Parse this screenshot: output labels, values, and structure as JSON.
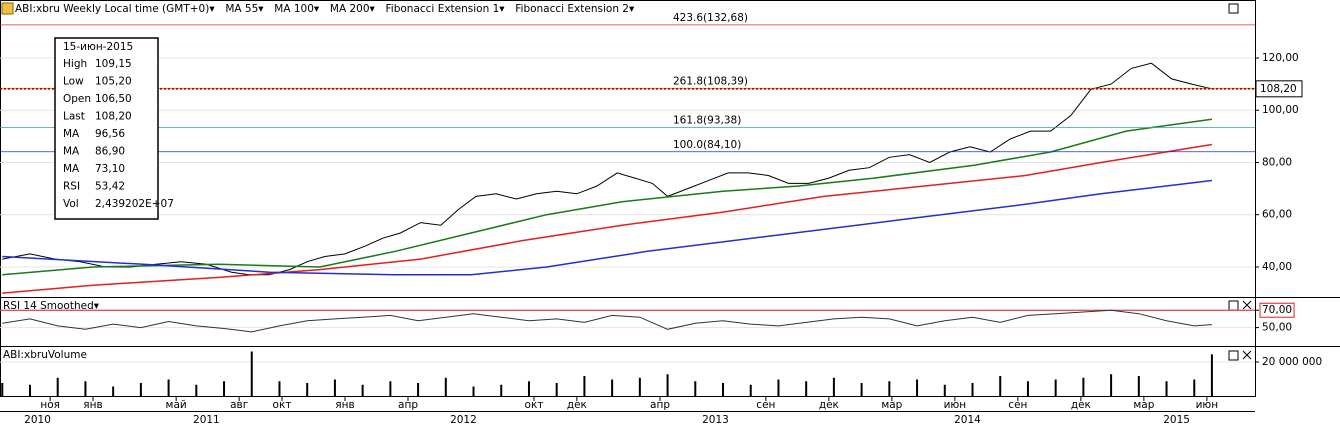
{
  "chart_data": [
    {
      "type": "line",
      "title": "ABI:xbru Weekly Local time (GMT+0)▾",
      "xlim": [
        2010.631,
        2015.611
      ],
      "ylim": [
        28.5,
        142.2
      ],
      "yticks": [
        {
          "value": 40,
          "label": "40,00"
        },
        {
          "value": 60,
          "label": "60,00"
        },
        {
          "value": 80,
          "label": "80,00"
        },
        {
          "value": 100,
          "label": "100,00"
        },
        {
          "value": 120,
          "label": "120,00"
        }
      ],
      "series": [
        {
          "color": "#000000",
          "x": [
            2010.64,
            2010.75,
            2010.85,
            2010.95,
            2011.05,
            2011.15,
            2011.25,
            2011.35,
            2011.45,
            2011.55,
            2011.62,
            2011.7,
            2011.78,
            2011.85,
            2011.92,
            2012.0,
            2012.08,
            2012.15,
            2012.22,
            2012.3,
            2012.38,
            2012.45,
            2012.52,
            2012.6,
            2012.68,
            2012.76,
            2012.84,
            2012.92,
            2013.0,
            2013.08,
            2013.15,
            2013.22,
            2013.28,
            2013.36,
            2013.44,
            2013.52,
            2013.6,
            2013.68,
            2013.76,
            2013.84,
            2013.92,
            2014.0,
            2014.08,
            2014.16,
            2014.24,
            2014.32,
            2014.4,
            2014.48,
            2014.56,
            2014.64,
            2014.72,
            2014.8,
            2014.88,
            2014.96,
            2015.04,
            2015.12,
            2015.2,
            2015.28,
            2015.36,
            2015.44
          ],
          "values": [
            43,
            45,
            43,
            42,
            40,
            40,
            41,
            42,
            41,
            38,
            37,
            37,
            39,
            42,
            44,
            45,
            48,
            51,
            53,
            57,
            56,
            62,
            67,
            68,
            66,
            68,
            69,
            68,
            71,
            76,
            74,
            72,
            67,
            70,
            73,
            76,
            76,
            75,
            72,
            72,
            74,
            77,
            78,
            82,
            83,
            80,
            84,
            86,
            84,
            89,
            92,
            92,
            98,
            108,
            110,
            116,
            118,
            112,
            110,
            108.2
          ]
        },
        {
          "name": "MA 55▾",
          "color": "#1a7a1a",
          "x": [
            2010.64,
            2011.0,
            2011.5,
            2011.9,
            2012.2,
            2012.5,
            2012.8,
            2013.1,
            2013.5,
            2013.8,
            2014.1,
            2014.5,
            2014.8,
            2015.1,
            2015.44
          ],
          "values": [
            37,
            40,
            41,
            40,
            46,
            53,
            60,
            65,
            69,
            71,
            74,
            79,
            84,
            92,
            96.56
          ]
        },
        {
          "name": "MA 100▾",
          "color": "#e02020",
          "x": [
            2010.64,
            2011.0,
            2011.5,
            2011.9,
            2012.3,
            2012.7,
            2013.1,
            2013.5,
            2013.9,
            2014.3,
            2014.7,
            2015.0,
            2015.44
          ],
          "values": [
            30,
            33,
            36,
            39,
            43,
            50,
            56,
            61,
            67,
            71,
            75,
            80,
            86.9
          ]
        },
        {
          "name": "MA 200▾",
          "color": "#2030d0",
          "x": [
            2010.64,
            2011.2,
            2011.7,
            2012.2,
            2012.5,
            2012.8,
            2013.2,
            2013.7,
            2014.2,
            2014.7,
            2015.0,
            2015.44
          ],
          "values": [
            44,
            41,
            38,
            37,
            37,
            40,
            46,
            52,
            58,
            64,
            68,
            73.1
          ]
        }
      ],
      "fib_tools": [
        "Fibonacci Extension 1▾",
        "Fibonacci Extension 2▾"
      ],
      "levels": [
        {
          "value": 132.68,
          "label": "423.6(132,68)",
          "color": "#e03030"
        },
        {
          "value": 108.39,
          "label": "261.8(108,39)",
          "color": "#d07020"
        },
        {
          "value": 93.38,
          "label": "161.8(93,38)",
          "color": "#40a0a0"
        },
        {
          "value": 84.1,
          "label": "100.0(84,10)",
          "color": "#2030d0"
        }
      ],
      "last_value": {
        "value": 108.2,
        "label": "108,20"
      },
      "info": {
        "date": "15-июн-2015",
        "rows": [
          {
            "label": "High",
            "value": "109,15",
            "color": "#000000"
          },
          {
            "label": "Low",
            "value": "105,20",
            "color": "#000000"
          },
          {
            "label": "Open",
            "value": "106,50",
            "color": "#000000"
          },
          {
            "label": "Last",
            "value": "108,20",
            "color": "#000000"
          },
          {
            "label": "MA",
            "value": "96,56",
            "color": "#1a7a1a"
          },
          {
            "label": "MA",
            "value": "86,90",
            "color": "#e02020"
          },
          {
            "label": "MA",
            "value": "73,10",
            "color": "#2030d0"
          },
          {
            "label": "RSI",
            "value": "53,42",
            "color": "#000000"
          },
          {
            "label": "Vol",
            "value": "2,439202E+07",
            "color": "#000000"
          }
        ]
      }
    },
    {
      "type": "line",
      "title": "RSI 14 Smoothed▾",
      "xlim": [
        2010.631,
        2015.611
      ],
      "ylim": [
        28.8,
        84.1
      ],
      "yticks": [
        {
          "value": 50,
          "label": "50,00"
        },
        {
          "value": 70,
          "label": "70,00"
        }
      ],
      "series": [
        {
          "color": "#333333",
          "x": [
            2010.64,
            2010.75,
            2010.86,
            2010.97,
            2011.08,
            2011.19,
            2011.3,
            2011.41,
            2011.52,
            2011.63,
            2011.74,
            2011.85,
            2011.96,
            2012.07,
            2012.18,
            2012.29,
            2012.4,
            2012.51,
            2012.62,
            2012.73,
            2012.84,
            2012.95,
            2013.06,
            2013.17,
            2013.28,
            2013.39,
            2013.5,
            2013.61,
            2013.72,
            2013.83,
            2013.94,
            2014.05,
            2014.16,
            2014.27,
            2014.38,
            2014.49,
            2014.6,
            2014.71,
            2014.82,
            2014.93,
            2015.04,
            2015.15,
            2015.26,
            2015.37,
            2015.44
          ],
          "values": [
            55,
            60,
            52,
            48,
            54,
            50,
            57,
            52,
            49,
            45,
            52,
            58,
            60,
            62,
            64,
            58,
            62,
            66,
            62,
            58,
            60,
            56,
            64,
            62,
            48,
            55,
            58,
            54,
            52,
            56,
            60,
            62,
            60,
            52,
            58,
            62,
            56,
            64,
            66,
            68,
            70,
            66,
            58,
            52,
            53.42
          ]
        }
      ]
    },
    {
      "type": "bar",
      "title": "ABI:xbruVolume",
      "xlim": [
        2010.631,
        2015.611
      ],
      "ylim": [
        0,
        28570000
      ],
      "yticks": [
        {
          "value": 20000000,
          "label": "20 000 000"
        }
      ],
      "color": "#000000",
      "x": [
        2010.64,
        2010.75,
        2010.86,
        2010.97,
        2011.08,
        2011.19,
        2011.3,
        2011.41,
        2011.52,
        2011.63,
        2011.74,
        2011.85,
        2011.96,
        2012.07,
        2012.18,
        2012.29,
        2012.4,
        2012.51,
        2012.62,
        2012.73,
        2012.84,
        2012.95,
        2013.06,
        2013.17,
        2013.28,
        2013.39,
        2013.5,
        2013.61,
        2013.72,
        2013.83,
        2013.94,
        2014.05,
        2014.16,
        2014.27,
        2014.38,
        2014.49,
        2014.6,
        2014.71,
        2014.82,
        2014.93,
        2015.04,
        2015.15,
        2015.26,
        2015.37,
        2015.44
      ],
      "values": [
        8000000,
        7000000,
        11000000,
        9000000,
        6000000,
        8000000,
        10000000,
        7000000,
        9000000,
        26000000,
        9000000,
        8000000,
        10000000,
        7000000,
        9000000,
        8000000,
        11000000,
        6000000,
        7000000,
        9000000,
        8000000,
        12000000,
        10000000,
        11000000,
        13000000,
        9000000,
        8000000,
        7000000,
        10000000,
        9000000,
        11000000,
        8000000,
        9000000,
        10000000,
        7000000,
        8000000,
        12000000,
        9000000,
        10000000,
        11000000,
        13000000,
        12000000,
        9000000,
        10000000,
        24392020
      ],
      "xticks": [
        {
          "value": 2010.83,
          "label": "ноя"
        },
        {
          "value": 2011.0,
          "label": "янв"
        },
        {
          "value": 2011.33,
          "label": "май"
        },
        {
          "value": 2011.58,
          "label": "авг"
        },
        {
          "value": 2011.75,
          "label": "окт"
        },
        {
          "value": 2012.0,
          "label": "янв"
        },
        {
          "value": 2012.25,
          "label": "апр"
        },
        {
          "value": 2012.75,
          "label": "окт"
        },
        {
          "value": 2012.92,
          "label": "дек"
        },
        {
          "value": 2013.25,
          "label": "апр"
        },
        {
          "value": 2013.67,
          "label": "сен"
        },
        {
          "value": 2013.92,
          "label": "дек"
        },
        {
          "value": 2014.17,
          "label": "мар"
        },
        {
          "value": 2014.42,
          "label": "июн"
        },
        {
          "value": 2014.67,
          "label": "сен"
        },
        {
          "value": 2014.92,
          "label": "дек"
        },
        {
          "value": 2015.17,
          "label": "мар"
        },
        {
          "value": 2015.42,
          "label": "июн"
        }
      ],
      "year_ticks": [
        {
          "value": 2010.78,
          "label": "2010"
        },
        {
          "value": 2011.45,
          "label": "2011"
        },
        {
          "value": 2012.47,
          "label": "2012"
        },
        {
          "value": 2013.47,
          "label": "2013"
        },
        {
          "value": 2014.47,
          "label": "2014"
        },
        {
          "value": 2015.3,
          "label": "2015"
        }
      ]
    }
  ]
}
